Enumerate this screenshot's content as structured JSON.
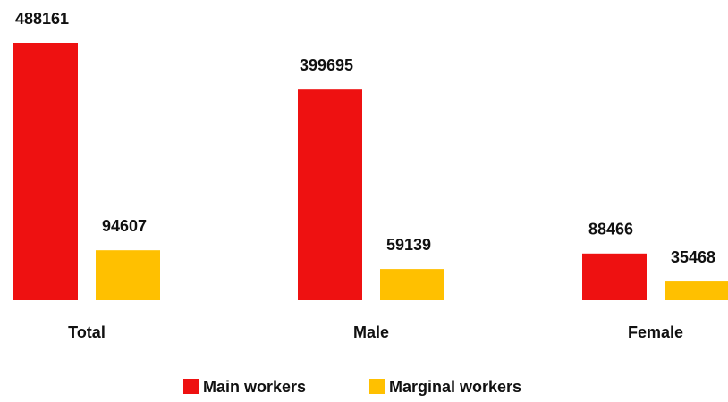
{
  "chart_data": {
    "type": "bar",
    "categories": [
      "Total",
      "Male",
      "Female"
    ],
    "series": [
      {
        "name": "Main workers",
        "color": "#ee1111",
        "values": [
          488161,
          399695,
          88466
        ]
      },
      {
        "name": "Marginal workers",
        "color": "#ffc000",
        "values": [
          94607,
          59139,
          35468
        ]
      }
    ]
  }
}
